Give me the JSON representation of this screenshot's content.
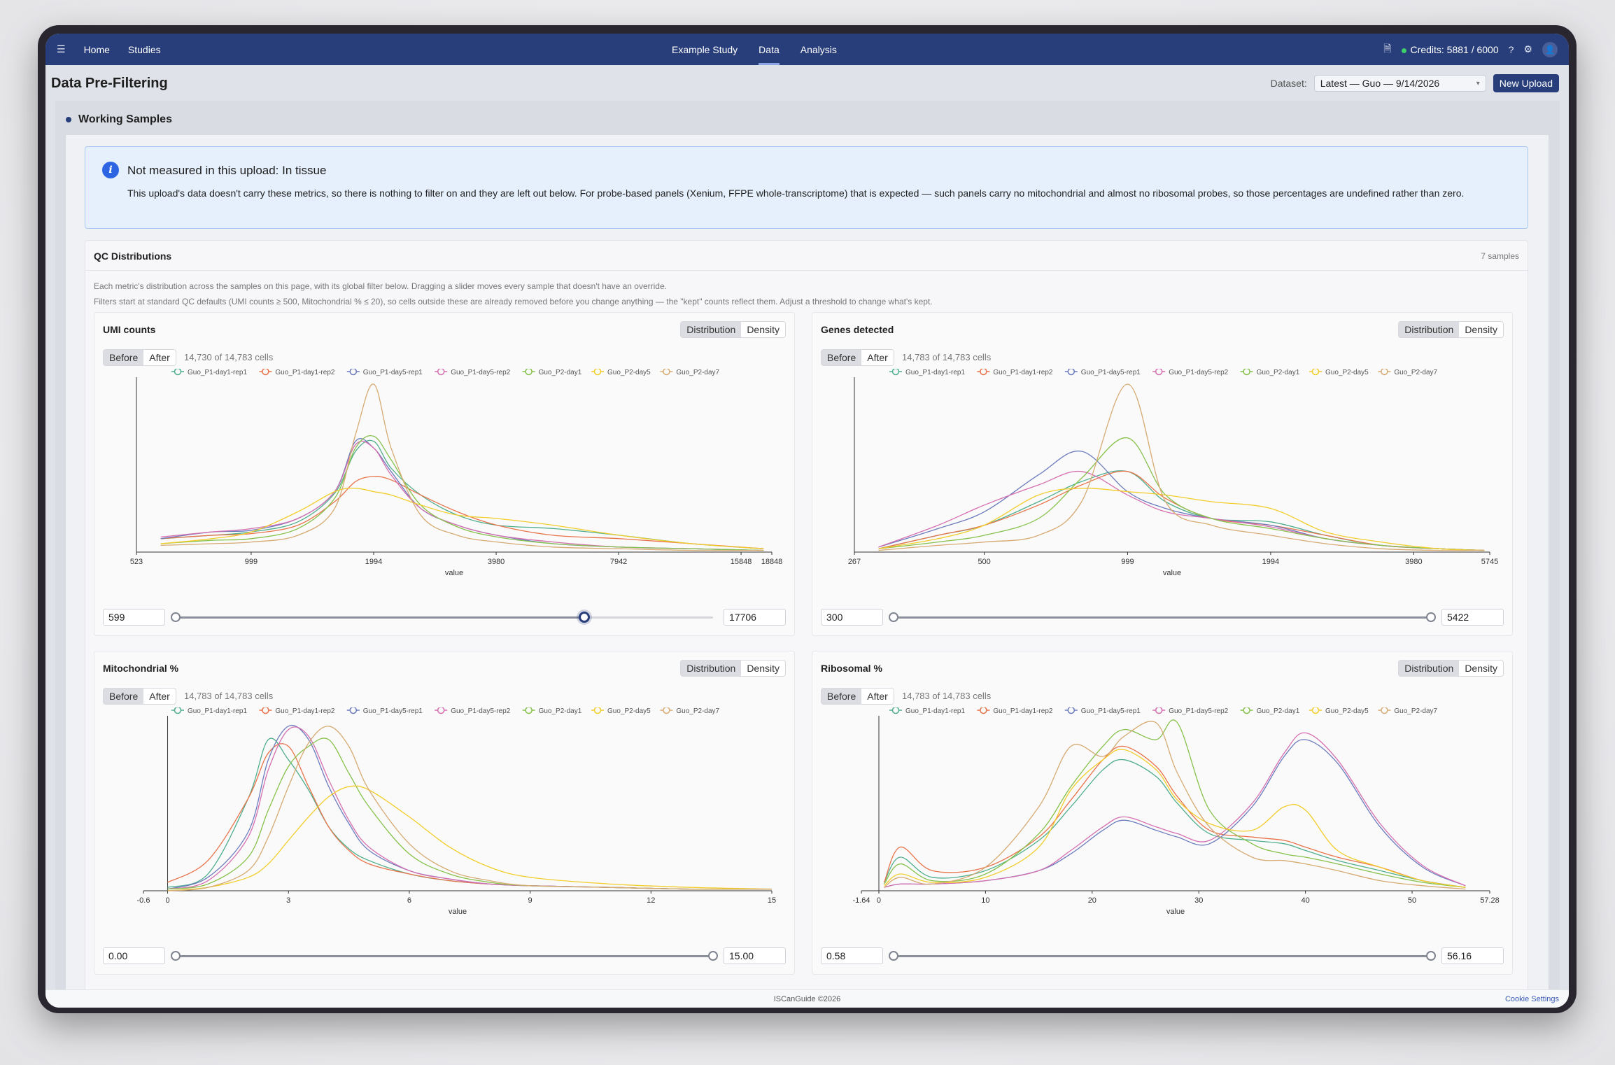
{
  "nav": {
    "home": "Home",
    "studies": "Studies",
    "study": "Example Study",
    "data": "Data",
    "analysis": "Analysis",
    "credits": "Credits: 5881 / 6000"
  },
  "page": {
    "title": "Data Pre-Filtering",
    "dataset_label": "Dataset:",
    "dataset_value": "Latest — Guo — 9/14/2026",
    "new_upload": "New Upload"
  },
  "working": {
    "title": "Working Samples"
  },
  "info": {
    "title": "Not measured in this upload: In tissue",
    "body": "This upload's data doesn't carry these metrics, so there is nothing to filter on and they are left out below. For probe-based panels (Xenium, FFPE whole-transcriptome) that is expected — such panels carry no mitochondrial and almost no ribosomal probes, so those percentages are undefined rather than zero."
  },
  "qc": {
    "title": "QC Distributions",
    "count": "7 samples",
    "desc1": "Each metric's distribution across the samples on this page, with its global filter below. Dragging a slider moves every sample that doesn't have an override.",
    "desc2": "Filters start at standard QC defaults (UMI counts ≥ 500, Mitochondrial % ≤ 20), so cells outside these are already removed before you change anything — the \"kept\" counts reflect them. Adjust a threshold to change what's kept."
  },
  "controls": {
    "distribution": "Distribution",
    "density": "Density",
    "before": "Before",
    "after": "After",
    "xlabel": "value"
  },
  "series_colors": [
    "#4fae8c",
    "#e8734a",
    "#6c7bbd",
    "#d56fb0",
    "#86c14b",
    "#f2cd2a",
    "#d6aa72"
  ],
  "series_names": [
    "Guo_P1-day1-rep1",
    "Guo_P1-day1-rep2",
    "Guo_P1-day5-rep1",
    "Guo_P1-day5-rep2",
    "Guo_P2-day1",
    "Guo_P2-day5",
    "Guo_P2-day7"
  ],
  "metrics": [
    {
      "title": "UMI counts",
      "cells": "14,730 of 14,783 cells",
      "lo": "599",
      "hi": "17706",
      "lo_frac": 0.0,
      "hi_frac": 0.76,
      "active_knob": "hi"
    },
    {
      "title": "Genes detected",
      "cells": "14,783 of 14,783 cells",
      "lo": "300",
      "hi": "5422",
      "lo_frac": 0.0,
      "hi_frac": 1.0,
      "active_knob": ""
    },
    {
      "title": "Mitochondrial %",
      "cells": "14,783 of 14,783 cells",
      "lo": "0.00",
      "hi": "15.00",
      "lo_frac": 0.0,
      "hi_frac": 1.0,
      "active_knob": ""
    },
    {
      "title": "Ribosomal %",
      "cells": "14,783 of 14,783 cells",
      "lo": "0.58",
      "hi": "56.16",
      "lo_frac": 0.0,
      "hi_frac": 1.0,
      "active_knob": ""
    }
  ],
  "chart_data": [
    {
      "type": "line",
      "title": "UMI counts",
      "xlabel": "value",
      "xscale": "log",
      "xlim": [
        523,
        18848
      ],
      "x_ticks": [
        "523",
        "999",
        "1994",
        "3980",
        "7942",
        "15848",
        "18848"
      ],
      "x": [
        600,
        800,
        1000,
        1300,
        1600,
        1800,
        1994,
        2200,
        2600,
        3200,
        4000,
        5500,
        8000,
        12000,
        18000
      ],
      "series": [
        {
          "name": "Guo_P1-day1-rep1",
          "values": [
            0.08,
            0.1,
            0.12,
            0.18,
            0.35,
            0.6,
            0.66,
            0.5,
            0.34,
            0.22,
            0.16,
            0.14,
            0.1,
            0.05,
            0.02
          ]
        },
        {
          "name": "Guo_P1-day1-rep2",
          "values": [
            0.08,
            0.1,
            0.11,
            0.16,
            0.3,
            0.42,
            0.45,
            0.43,
            0.34,
            0.24,
            0.16,
            0.1,
            0.08,
            0.05,
            0.02
          ]
        },
        {
          "name": "Guo_P1-day5-rep1",
          "values": [
            0.08,
            0.12,
            0.13,
            0.2,
            0.36,
            0.66,
            0.62,
            0.48,
            0.26,
            0.16,
            0.1,
            0.05,
            0.03,
            0.02,
            0.01
          ]
        },
        {
          "name": "Guo_P1-day5-rep2",
          "values": [
            0.09,
            0.12,
            0.14,
            0.2,
            0.36,
            0.64,
            0.62,
            0.46,
            0.26,
            0.16,
            0.1,
            0.06,
            0.03,
            0.02,
            0.01
          ]
        },
        {
          "name": "Guo_P2-day1",
          "values": [
            0.05,
            0.07,
            0.08,
            0.14,
            0.32,
            0.62,
            0.69,
            0.55,
            0.28,
            0.15,
            0.09,
            0.05,
            0.03,
            0.02,
            0.01
          ]
        },
        {
          "name": "Guo_P2-day5",
          "values": [
            0.05,
            0.08,
            0.12,
            0.24,
            0.36,
            0.38,
            0.36,
            0.34,
            0.28,
            0.22,
            0.2,
            0.16,
            0.1,
            0.05,
            0.02
          ]
        },
        {
          "name": "Guo_P2-day7",
          "values": [
            0.04,
            0.05,
            0.06,
            0.1,
            0.26,
            0.7,
            1.0,
            0.62,
            0.22,
            0.1,
            0.06,
            0.03,
            0.02,
            0.01,
            0.01
          ]
        }
      ]
    },
    {
      "type": "line",
      "title": "Genes detected",
      "xlabel": "value",
      "xscale": "log",
      "xlim": [
        267,
        5745
      ],
      "x_ticks": [
        "267",
        "500",
        "999",
        "1994",
        "3980",
        "5745"
      ],
      "x": [
        300,
        400,
        500,
        650,
        800,
        999,
        1200,
        1500,
        1994,
        2600,
        3400,
        4500,
        5600
      ],
      "series": [
        {
          "name": "Guo_P1-day1-rep1",
          "values": [
            0.02,
            0.1,
            0.16,
            0.3,
            0.42,
            0.48,
            0.3,
            0.2,
            0.18,
            0.1,
            0.04,
            0.02,
            0.01
          ]
        },
        {
          "name": "Guo_P1-day1-rep2",
          "values": [
            0.02,
            0.1,
            0.16,
            0.28,
            0.4,
            0.48,
            0.32,
            0.2,
            0.16,
            0.1,
            0.04,
            0.02,
            0.01
          ]
        },
        {
          "name": "Guo_P1-day5-rep1",
          "values": [
            0.03,
            0.14,
            0.24,
            0.46,
            0.6,
            0.36,
            0.26,
            0.2,
            0.16,
            0.08,
            0.04,
            0.02,
            0.01
          ]
        },
        {
          "name": "Guo_P1-day5-rep2",
          "values": [
            0.03,
            0.16,
            0.28,
            0.4,
            0.48,
            0.34,
            0.24,
            0.2,
            0.15,
            0.08,
            0.04,
            0.02,
            0.01
          ]
        },
        {
          "name": "Guo_P2-day1",
          "values": [
            0.02,
            0.06,
            0.1,
            0.2,
            0.44,
            0.68,
            0.34,
            0.2,
            0.14,
            0.08,
            0.04,
            0.02,
            0.01
          ]
        },
        {
          "name": "Guo_P2-day5",
          "values": [
            0.02,
            0.08,
            0.16,
            0.34,
            0.38,
            0.36,
            0.34,
            0.3,
            0.26,
            0.12,
            0.06,
            0.02,
            0.01
          ]
        },
        {
          "name": "Guo_P2-day7",
          "values": [
            0.01,
            0.04,
            0.06,
            0.1,
            0.3,
            1.0,
            0.3,
            0.16,
            0.1,
            0.05,
            0.02,
            0.01,
            0.01
          ]
        }
      ]
    },
    {
      "type": "line",
      "title": "Mitochondrial %",
      "xlabel": "value",
      "xlim": [
        -0.6,
        15
      ],
      "x_ticks": [
        "-0.6",
        "0",
        "3",
        "6",
        "9",
        "12",
        "15"
      ],
      "x": [
        0,
        1,
        2,
        2.5,
        3,
        3.5,
        4,
        4.5,
        5,
        6,
        7,
        8,
        9,
        11,
        13,
        15
      ],
      "series": [
        {
          "name": "Guo_P1-day1-rep1",
          "values": [
            0.02,
            0.1,
            0.55,
            0.9,
            0.78,
            0.6,
            0.38,
            0.25,
            0.18,
            0.1,
            0.06,
            0.04,
            0.03,
            0.02,
            0.01,
            0.01
          ]
        },
        {
          "name": "Guo_P1-day1-rep2",
          "values": [
            0.05,
            0.18,
            0.55,
            0.82,
            0.86,
            0.62,
            0.38,
            0.24,
            0.16,
            0.1,
            0.06,
            0.04,
            0.03,
            0.02,
            0.01,
            0.01
          ]
        },
        {
          "name": "Guo_P1-day5-rep1",
          "values": [
            0.01,
            0.08,
            0.35,
            0.78,
            0.98,
            0.9,
            0.62,
            0.4,
            0.24,
            0.12,
            0.07,
            0.04,
            0.03,
            0.02,
            0.01,
            0.01
          ]
        },
        {
          "name": "Guo_P1-day5-rep2",
          "values": [
            0.01,
            0.06,
            0.32,
            0.72,
            0.96,
            0.92,
            0.66,
            0.42,
            0.26,
            0.12,
            0.07,
            0.04,
            0.03,
            0.02,
            0.01,
            0.01
          ]
        },
        {
          "name": "Guo_P2-day1",
          "values": [
            0.01,
            0.04,
            0.2,
            0.48,
            0.74,
            0.86,
            0.9,
            0.7,
            0.5,
            0.22,
            0.1,
            0.05,
            0.03,
            0.02,
            0.01,
            0.01
          ]
        },
        {
          "name": "Guo_P2-day5",
          "values": [
            0.0,
            0.02,
            0.08,
            0.16,
            0.3,
            0.44,
            0.56,
            0.62,
            0.6,
            0.44,
            0.26,
            0.14,
            0.08,
            0.04,
            0.02,
            0.01
          ]
        },
        {
          "name": "Guo_P2-day7",
          "values": [
            0.0,
            0.02,
            0.12,
            0.32,
            0.62,
            0.88,
            0.98,
            0.86,
            0.6,
            0.28,
            0.12,
            0.06,
            0.03,
            0.02,
            0.01,
            0.01
          ]
        }
      ]
    },
    {
      "type": "line",
      "title": "Ribosomal %",
      "xlabel": "value",
      "xlim": [
        -1.64,
        57.28
      ],
      "x_ticks": [
        "-1.64",
        "0",
        "10",
        "20",
        "30",
        "40",
        "50",
        "57.28"
      ],
      "x": [
        0.5,
        2,
        5,
        10,
        15,
        18,
        21,
        23,
        26,
        28,
        31,
        35,
        38,
        40,
        43,
        47,
        51,
        55
      ],
      "series": [
        {
          "name": "Guo_P1-day1-rep1",
          "values": [
            0.05,
            0.2,
            0.08,
            0.12,
            0.3,
            0.5,
            0.72,
            0.78,
            0.68,
            0.52,
            0.34,
            0.3,
            0.28,
            0.24,
            0.18,
            0.12,
            0.06,
            0.02
          ]
        },
        {
          "name": "Guo_P1-day1-rep2",
          "values": [
            0.05,
            0.26,
            0.12,
            0.14,
            0.32,
            0.54,
            0.78,
            0.86,
            0.74,
            0.56,
            0.36,
            0.32,
            0.3,
            0.26,
            0.2,
            0.14,
            0.06,
            0.02
          ]
        },
        {
          "name": "Guo_P1-day5-rep1",
          "values": [
            0.02,
            0.04,
            0.04,
            0.06,
            0.12,
            0.22,
            0.36,
            0.42,
            0.36,
            0.32,
            0.28,
            0.5,
            0.8,
            0.9,
            0.76,
            0.38,
            0.14,
            0.03
          ]
        },
        {
          "name": "Guo_P1-day5-rep2",
          "values": [
            0.02,
            0.04,
            0.04,
            0.06,
            0.12,
            0.24,
            0.38,
            0.44,
            0.38,
            0.34,
            0.3,
            0.52,
            0.82,
            0.94,
            0.78,
            0.4,
            0.15,
            0.03
          ]
        },
        {
          "name": "Guo_P2-day1",
          "values": [
            0.04,
            0.16,
            0.06,
            0.1,
            0.34,
            0.62,
            0.86,
            0.96,
            0.9,
            1.0,
            0.48,
            0.28,
            0.22,
            0.2,
            0.16,
            0.1,
            0.05,
            0.02
          ]
        },
        {
          "name": "Guo_P2-day5",
          "values": [
            0.03,
            0.1,
            0.05,
            0.08,
            0.26,
            0.6,
            0.78,
            0.84,
            0.72,
            0.54,
            0.4,
            0.36,
            0.5,
            0.48,
            0.24,
            0.14,
            0.06,
            0.02
          ]
        },
        {
          "name": "Guo_P2-day7",
          "values": [
            0.02,
            0.08,
            0.04,
            0.14,
            0.5,
            0.86,
            0.8,
            0.92,
            1.0,
            0.7,
            0.38,
            0.2,
            0.18,
            0.16,
            0.12,
            0.06,
            0.03,
            0.01
          ]
        }
      ]
    }
  ],
  "footer": {
    "copy": "ISCanGuide ©2026",
    "cookie": "Cookie Settings"
  }
}
